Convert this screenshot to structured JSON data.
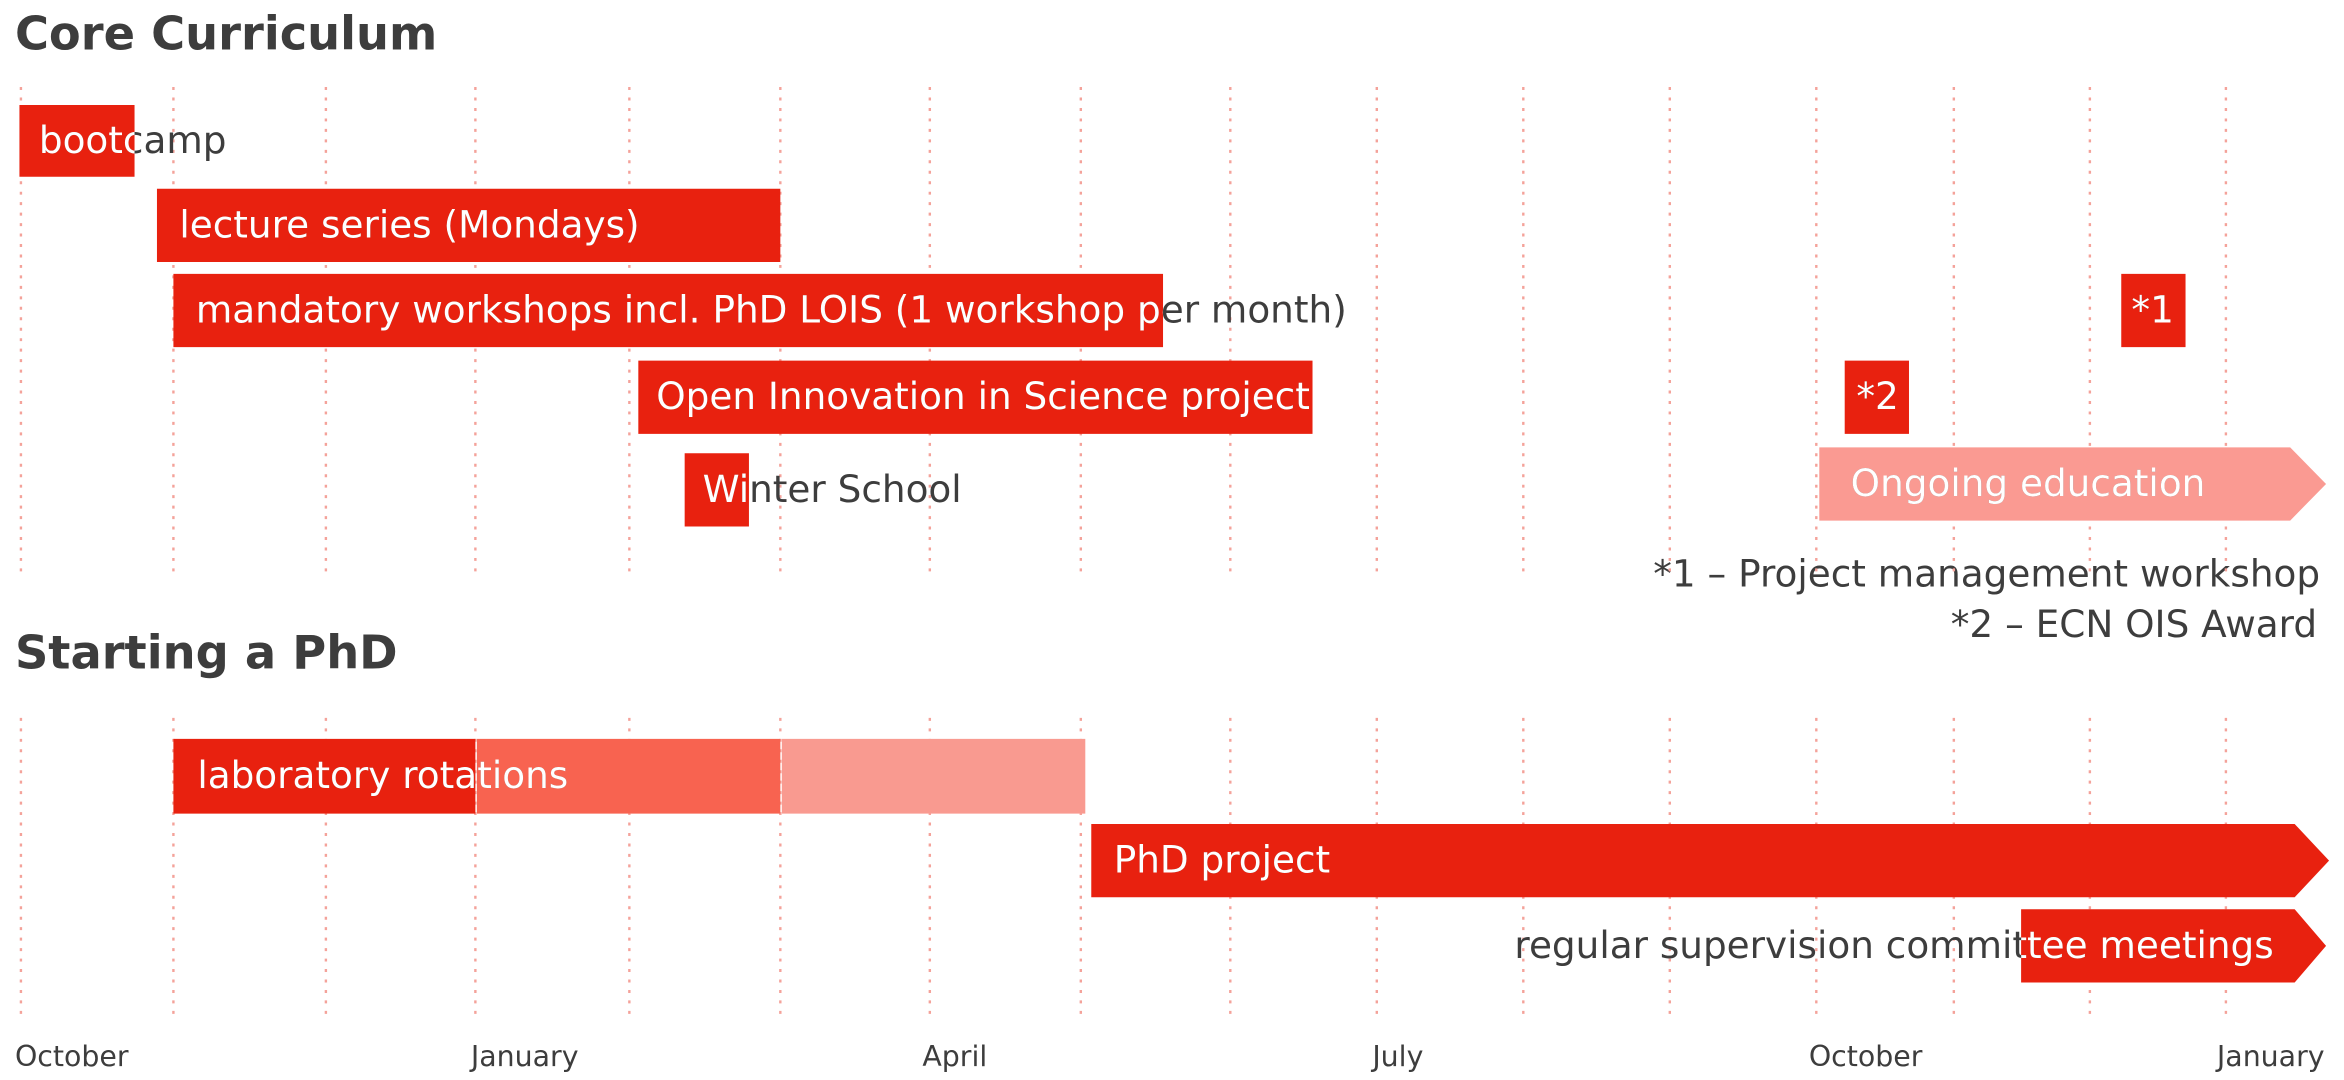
{
  "core_curriculum": {
    "title": "Core Curriculum",
    "items": [
      "bootcamp",
      "lecture series (Mondays)",
      "mandatory workshops incl. PhD LOIS (1 workshop per month)",
      "*1",
      "Open Innovation in Science project",
      "*2",
      "Winter School",
      "Ongoing education"
    ],
    "footnotes": [
      "*1 – Project management workshop",
      "*2 – ECN OIS Award"
    ]
  },
  "starting_a_phd": {
    "title": "Starting a PhD",
    "items": [
      "laboratory rotations",
      "PhD project",
      "regular supervision committee meetings"
    ]
  },
  "months": [
    "October",
    "January",
    "April",
    "July",
    "October",
    "January"
  ]
}
